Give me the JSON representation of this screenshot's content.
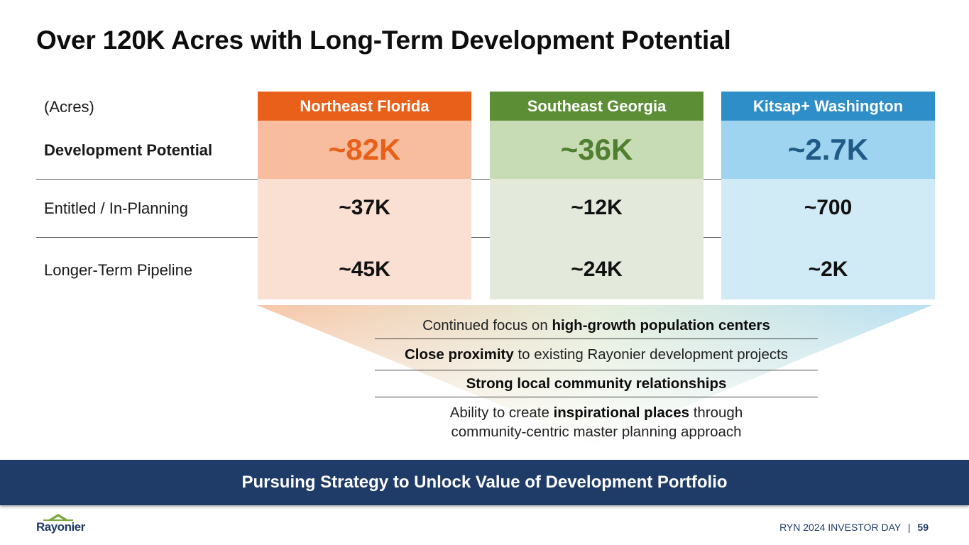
{
  "slide": {
    "title": "Over 120K Acres with Long-Term Development Potential"
  },
  "table": {
    "unit_label": "(Acres)",
    "row_labels": {
      "development_potential": "Development Potential",
      "entitled": "Entitled / In-Planning",
      "pipeline": "Longer-Term Pipeline"
    },
    "columns": [
      {
        "name": "Northeast Florida",
        "development_potential": "~82K",
        "entitled": "~37K",
        "pipeline": "~45K",
        "header_color": "#e8601a",
        "potential_bg": "#f8bd9e",
        "potential_text": "#e8601a",
        "body_bg": "#fae0d3"
      },
      {
        "name": "Southeast Georgia",
        "development_potential": "~36K",
        "entitled": "~12K",
        "pipeline": "~24K",
        "header_color": "#5c8f35",
        "potential_bg": "#c7dcb5",
        "potential_text": "#4f7f2f",
        "body_bg": "#e3eadc"
      },
      {
        "name": "Kitsap+ Washington",
        "development_potential": "~2.7K",
        "entitled": "~700",
        "pipeline": "~2K",
        "header_color": "#2e8ec8",
        "potential_bg": "#9ed4f0",
        "potential_text": "#1f5b86",
        "body_bg": "#d0eaf6"
      }
    ]
  },
  "focus_points": [
    {
      "pre": "Continued focus on ",
      "bold": "high-growth population centers",
      "post": ""
    },
    {
      "pre": "",
      "bold": "Close proximity",
      "post": " to existing Rayonier development projects"
    },
    {
      "pre": "",
      "bold": "Strong local community relationships",
      "post": ""
    },
    {
      "pre": "Ability to create ",
      "bold": "inspirational places",
      "post": " through",
      "line2": "community-centric master planning approach"
    }
  ],
  "banner": {
    "text": "Pursuing Strategy to Unlock Value of Development Portfolio"
  },
  "footer": {
    "logo_text": "Rayonier",
    "event": "RYN 2024 INVESTOR DAY",
    "separator": "|",
    "page": "59"
  }
}
